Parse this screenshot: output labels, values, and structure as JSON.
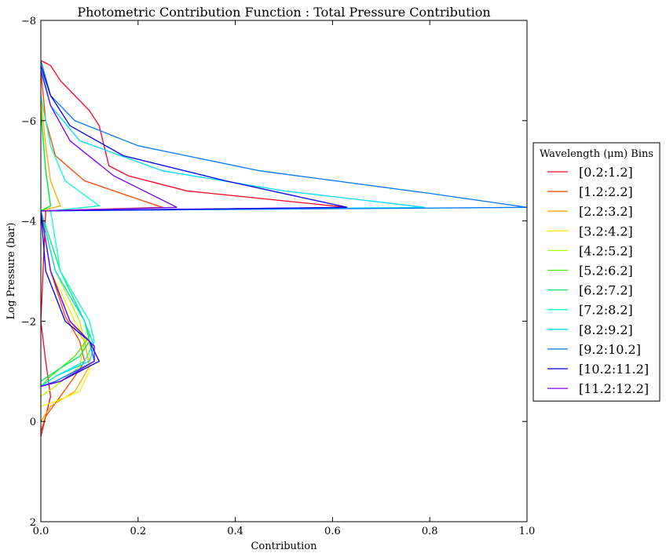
{
  "chart_data": {
    "type": "line",
    "title": "Photometric Contribution Function : Total Pressure Contribution",
    "xlabel": "Contribution",
    "ylabel": "Log Pressure (bar)",
    "xlim": [
      0.0,
      1.0
    ],
    "ylim": [
      2,
      -8
    ],
    "y_inverted": true,
    "grid": false,
    "xticks": [
      "0.0",
      "0.2",
      "0.4",
      "0.6",
      "0.8",
      "1.0"
    ],
    "xtick_values": [
      0.0,
      0.2,
      0.4,
      0.6,
      0.8,
      1.0
    ],
    "yticks": [
      "−8",
      "−6",
      "−4",
      "−2",
      "0",
      "2"
    ],
    "ytick_values": [
      -8,
      -6,
      -4,
      -2,
      0,
      2
    ],
    "legend": {
      "title": "Wavelength (μm) Bins",
      "placement": "right-outside"
    },
    "series": [
      {
        "name": "[0.2:1.2]",
        "color": "#ff0022",
        "points": [
          [
            0.0,
            -7.2
          ],
          [
            0.02,
            -7.1
          ],
          [
            0.04,
            -6.8
          ],
          [
            0.07,
            -6.5
          ],
          [
            0.1,
            -6.2
          ],
          [
            0.12,
            -5.9
          ],
          [
            0.13,
            -5.5
          ],
          [
            0.14,
            -5.1
          ],
          [
            0.18,
            -4.9
          ],
          [
            0.3,
            -4.6
          ],
          [
            0.5,
            -4.4
          ],
          [
            0.63,
            -4.27
          ],
          [
            0.01,
            -4.2
          ],
          [
            0.0,
            -2.0
          ],
          [
            0.01,
            -1.2
          ],
          [
            0.02,
            -0.5
          ],
          [
            0.01,
            -0.1
          ],
          [
            0.0,
            0.3
          ]
        ]
      },
      {
        "name": "[1.2:2.2]",
        "color": "#ff4400",
        "points": [
          [
            0.0,
            -7.0
          ],
          [
            0.01,
            -6.0
          ],
          [
            0.03,
            -5.3
          ],
          [
            0.09,
            -4.8
          ],
          [
            0.18,
            -4.5
          ],
          [
            0.25,
            -4.27
          ],
          [
            0.0,
            -4.2
          ],
          [
            0.02,
            -3.0
          ],
          [
            0.05,
            -2.1
          ],
          [
            0.08,
            -1.6
          ],
          [
            0.09,
            -1.2
          ],
          [
            0.07,
            -0.9
          ],
          [
            0.04,
            -0.5
          ],
          [
            0.01,
            -0.1
          ],
          [
            0.0,
            0.2
          ]
        ]
      },
      {
        "name": "[2.2:3.2]",
        "color": "#ffaa00",
        "points": [
          [
            0.0,
            -6.5
          ],
          [
            0.01,
            -5.5
          ],
          [
            0.02,
            -4.8
          ],
          [
            0.04,
            -4.3
          ],
          [
            0.0,
            -4.2
          ],
          [
            0.02,
            -3.0
          ],
          [
            0.06,
            -2.0
          ],
          [
            0.09,
            -1.6
          ],
          [
            0.1,
            -1.1
          ],
          [
            0.07,
            -0.6
          ],
          [
            0.02,
            -0.3
          ],
          [
            0.0,
            0.0
          ]
        ]
      },
      {
        "name": "[3.2:4.2]",
        "color": "#ffee00",
        "points": [
          [
            0.0,
            -6.3
          ],
          [
            0.01,
            -5.0
          ],
          [
            0.02,
            -4.3
          ],
          [
            0.0,
            -4.2
          ],
          [
            0.02,
            -3.0
          ],
          [
            0.07,
            -2.0
          ],
          [
            0.1,
            -1.5
          ],
          [
            0.1,
            -1.0
          ],
          [
            0.08,
            -0.6
          ],
          [
            0.03,
            -0.4
          ],
          [
            0.0,
            -0.3
          ]
        ]
      },
      {
        "name": "[4.2:5.2]",
        "color": "#aaff00",
        "points": [
          [
            0.0,
            -6.2
          ],
          [
            0.01,
            -5.0
          ],
          [
            0.02,
            -4.3
          ],
          [
            0.0,
            -4.2
          ],
          [
            0.03,
            -3.0
          ],
          [
            0.08,
            -2.0
          ],
          [
            0.09,
            -1.6
          ],
          [
            0.08,
            -1.1
          ],
          [
            0.03,
            -0.7
          ],
          [
            0.0,
            -0.5
          ]
        ]
      },
      {
        "name": "[5.2:6.2]",
        "color": "#44ee00",
        "points": [
          [
            0.0,
            -6.2
          ],
          [
            0.01,
            -5.0
          ],
          [
            0.02,
            -4.3
          ],
          [
            0.0,
            -4.2
          ],
          [
            0.03,
            -3.0
          ],
          [
            0.09,
            -2.0
          ],
          [
            0.1,
            -1.7
          ],
          [
            0.07,
            -1.3
          ],
          [
            0.02,
            -0.9
          ],
          [
            0.0,
            -0.7
          ]
        ]
      },
      {
        "name": "[6.2:7.2]",
        "color": "#00ee66",
        "points": [
          [
            0.0,
            -6.2
          ],
          [
            0.01,
            -5.0
          ],
          [
            0.02,
            -4.3
          ],
          [
            0.0,
            -4.2
          ],
          [
            0.04,
            -3.0
          ],
          [
            0.09,
            -2.0
          ],
          [
            0.1,
            -1.6
          ],
          [
            0.08,
            -1.3
          ],
          [
            0.03,
            -1.0
          ],
          [
            0.0,
            -0.8
          ]
        ]
      },
      {
        "name": "[7.2:8.2]",
        "color": "#00ffcc",
        "points": [
          [
            0.0,
            -6.5
          ],
          [
            0.02,
            -5.5
          ],
          [
            0.05,
            -4.8
          ],
          [
            0.12,
            -4.3
          ],
          [
            0.02,
            -4.2
          ],
          [
            0.04,
            -3.0
          ],
          [
            0.1,
            -2.0
          ],
          [
            0.11,
            -1.6
          ],
          [
            0.09,
            -1.2
          ],
          [
            0.03,
            -0.9
          ],
          [
            0.0,
            -0.7
          ]
        ]
      },
      {
        "name": "[8.2:9.2]",
        "color": "#00ddff",
        "points": [
          [
            0.0,
            -7.1
          ],
          [
            0.02,
            -6.3
          ],
          [
            0.08,
            -5.6
          ],
          [
            0.25,
            -5.0
          ],
          [
            0.5,
            -4.6
          ],
          [
            0.79,
            -4.27
          ],
          [
            0.0,
            -4.2
          ],
          [
            0.03,
            -3.0
          ],
          [
            0.09,
            -2.0
          ],
          [
            0.11,
            -1.5
          ],
          [
            0.1,
            -1.2
          ],
          [
            0.03,
            -0.9
          ],
          [
            0.0,
            -0.7
          ]
        ]
      },
      {
        "name": "[9.2:10.2]",
        "color": "#0077ff",
        "points": [
          [
            0.0,
            -7.2
          ],
          [
            0.02,
            -6.5
          ],
          [
            0.07,
            -6.0
          ],
          [
            0.2,
            -5.5
          ],
          [
            0.45,
            -5.0
          ],
          [
            0.8,
            -4.55
          ],
          [
            1.0,
            -4.27
          ],
          [
            0.0,
            -4.2
          ],
          [
            0.02,
            -3.0
          ],
          [
            0.06,
            -2.0
          ],
          [
            0.1,
            -1.6
          ],
          [
            0.11,
            -1.2
          ],
          [
            0.03,
            -0.8
          ],
          [
            0.0,
            -0.7
          ]
        ]
      },
      {
        "name": "[10.2:11.2]",
        "color": "#0000ee",
        "points": [
          [
            0.0,
            -7.1
          ],
          [
            0.02,
            -6.5
          ],
          [
            0.06,
            -5.9
          ],
          [
            0.17,
            -5.3
          ],
          [
            0.38,
            -4.8
          ],
          [
            0.63,
            -4.27
          ],
          [
            0.0,
            -4.2
          ],
          [
            0.01,
            -3.0
          ],
          [
            0.05,
            -2.0
          ],
          [
            0.1,
            -1.6
          ],
          [
            0.12,
            -1.2
          ],
          [
            0.04,
            -0.8
          ],
          [
            0.0,
            -0.7
          ]
        ]
      },
      {
        "name": "[11.2:12.2]",
        "color": "#7700ee",
        "points": [
          [
            0.0,
            -7.0
          ],
          [
            0.02,
            -6.3
          ],
          [
            0.06,
            -5.6
          ],
          [
            0.15,
            -4.9
          ],
          [
            0.28,
            -4.27
          ],
          [
            0.0,
            -4.2
          ],
          [
            0.02,
            -3.0
          ],
          [
            0.06,
            -2.0
          ],
          [
            0.11,
            -1.5
          ],
          [
            0.11,
            -1.2
          ],
          [
            0.04,
            -0.8
          ],
          [
            0.0,
            -0.7
          ]
        ]
      }
    ]
  }
}
